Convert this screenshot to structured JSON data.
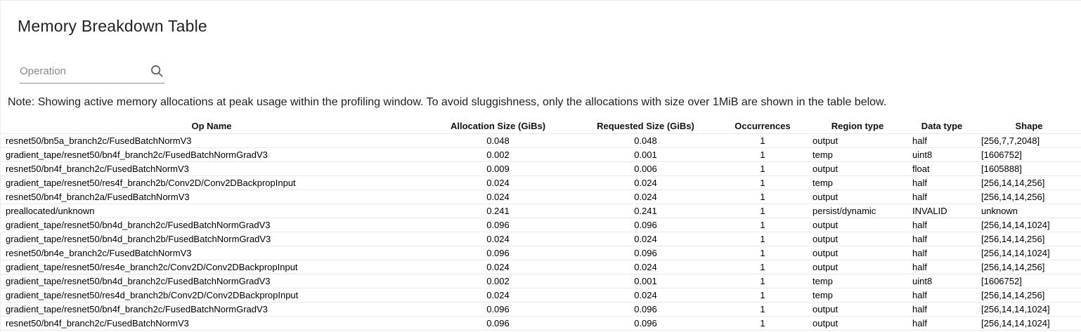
{
  "page": {
    "title": "Memory Breakdown Table"
  },
  "search": {
    "placeholder": "Operation",
    "value": "",
    "icon": "search-icon"
  },
  "note": {
    "text": "Note: Showing active memory allocations at peak usage within the profiling window. To avoid sluggishness, only the allocations with size over 1MiB are shown in the table below."
  },
  "colors": {
    "text": "#000000",
    "muted_gray": "#8a8a8a",
    "row_border": "#e9e9e9",
    "underline": "#8f8f8f"
  },
  "table": {
    "columns": [
      {
        "key": "op",
        "label": "Op Name"
      },
      {
        "key": "alloc",
        "label": "Allocation Size (GiBs)"
      },
      {
        "key": "req",
        "label": "Requested Size (GiBs)"
      },
      {
        "key": "occ",
        "label": "Occurrences"
      },
      {
        "key": "region",
        "label": "Region type"
      },
      {
        "key": "dtype",
        "label": "Data type"
      },
      {
        "key": "shape",
        "label": "Shape"
      }
    ],
    "rows": [
      {
        "op": "resnet50/bn5a_branch2c/FusedBatchNormV3",
        "alloc": "0.048",
        "req": "0.048",
        "occ": "1",
        "region": "output",
        "dtype": "half",
        "shape": "[256,7,7,2048]"
      },
      {
        "op": "gradient_tape/resnet50/bn4f_branch2c/FusedBatchNormGradV3",
        "alloc": "0.002",
        "req": "0.001",
        "occ": "1",
        "region": "temp",
        "dtype": "uint8",
        "shape": "[1606752]"
      },
      {
        "op": "resnet50/bn4f_branch2c/FusedBatchNormV3",
        "alloc": "0.009",
        "req": "0.006",
        "occ": "1",
        "region": "output",
        "dtype": "float",
        "shape": "[1605888]"
      },
      {
        "op": "gradient_tape/resnet50/res4f_branch2b/Conv2D/Conv2DBackpropInput",
        "alloc": "0.024",
        "req": "0.024",
        "occ": "1",
        "region": "temp",
        "dtype": "half",
        "shape": "[256,14,14,256]"
      },
      {
        "op": "resnet50/bn4f_branch2a/FusedBatchNormV3",
        "alloc": "0.024",
        "req": "0.024",
        "occ": "1",
        "region": "output",
        "dtype": "half",
        "shape": "[256,14,14,256]"
      },
      {
        "op": "preallocated/unknown",
        "alloc": "0.241",
        "req": "0.241",
        "occ": "1",
        "region": "persist/dynamic",
        "dtype": "INVALID",
        "shape": "unknown"
      },
      {
        "op": "gradient_tape/resnet50/bn4d_branch2c/FusedBatchNormGradV3",
        "alloc": "0.096",
        "req": "0.096",
        "occ": "1",
        "region": "output",
        "dtype": "half",
        "shape": "[256,14,14,1024]"
      },
      {
        "op": "gradient_tape/resnet50/bn4d_branch2b/FusedBatchNormGradV3",
        "alloc": "0.024",
        "req": "0.024",
        "occ": "1",
        "region": "output",
        "dtype": "half",
        "shape": "[256,14,14,256]"
      },
      {
        "op": "resnet50/bn4e_branch2c/FusedBatchNormV3",
        "alloc": "0.096",
        "req": "0.096",
        "occ": "1",
        "region": "output",
        "dtype": "half",
        "shape": "[256,14,14,1024]"
      },
      {
        "op": "gradient_tape/resnet50/res4e_branch2c/Conv2D/Conv2DBackpropInput",
        "alloc": "0.024",
        "req": "0.024",
        "occ": "1",
        "region": "output",
        "dtype": "half",
        "shape": "[256,14,14,256]"
      },
      {
        "op": "gradient_tape/resnet50/bn4d_branch2c/FusedBatchNormGradV3",
        "alloc": "0.002",
        "req": "0.001",
        "occ": "1",
        "region": "temp",
        "dtype": "uint8",
        "shape": "[1606752]"
      },
      {
        "op": "gradient_tape/resnet50/res4d_branch2b/Conv2D/Conv2DBackpropInput",
        "alloc": "0.024",
        "req": "0.024",
        "occ": "1",
        "region": "temp",
        "dtype": "half",
        "shape": "[256,14,14,256]"
      },
      {
        "op": "gradient_tape/resnet50/bn4f_branch2c/FusedBatchNormGradV3",
        "alloc": "0.096",
        "req": "0.096",
        "occ": "1",
        "region": "output",
        "dtype": "half",
        "shape": "[256,14,14,1024]"
      },
      {
        "op": "resnet50/bn4f_branch2c/FusedBatchNormV3",
        "alloc": "0.096",
        "req": "0.096",
        "occ": "1",
        "region": "output",
        "dtype": "half",
        "shape": "[256,14,14,1024]"
      }
    ]
  }
}
